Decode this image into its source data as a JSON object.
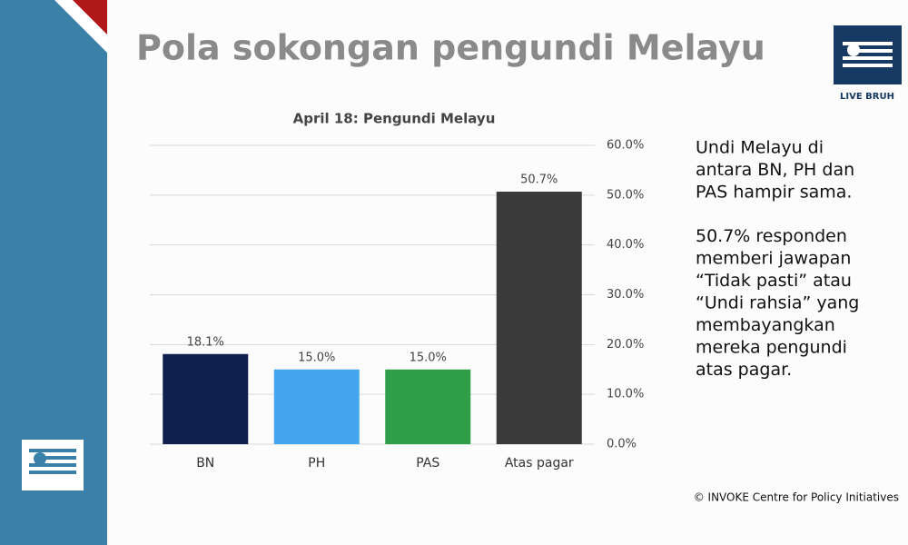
{
  "slide_title": "Pola sokongan pengundi Melayu",
  "logo_text": "LIVE BRUH",
  "notes": [
    [
      "Undi Melayu di",
      "antara BN, PH dan",
      "PAS hampir sama."
    ],
    [
      "50.7% responden",
      "memberi jawapan",
      "“Tidak pasti” atau",
      "“Undi rahsia” yang",
      "membayangkan",
      "mereka pengundi",
      "atas pagar."
    ]
  ],
  "credit": "© INVOKE Centre for Policy Initiatives",
  "chart_data": {
    "type": "bar",
    "title": "April 18: Pengundi Melayu",
    "categories": [
      "BN",
      "PH",
      "PAS",
      "Atas pagar"
    ],
    "values": [
      18.1,
      15.0,
      15.0,
      50.7
    ],
    "value_labels": [
      "18.1%",
      "15.0%",
      "15.0%",
      "50.7%"
    ],
    "colors": [
      "#0e1f50",
      "#43a6ef",
      "#2f9e48",
      "#3a3a3a"
    ],
    "ylim": [
      0,
      60
    ],
    "yticks": [
      {
        "value": 0,
        "label": "0.0%"
      },
      {
        "value": 10,
        "label": "10.0%"
      },
      {
        "value": 20,
        "label": "20.0%"
      },
      {
        "value": 30,
        "label": "30.0%"
      },
      {
        "value": 40,
        "label": "40.0%"
      },
      {
        "value": 50,
        "label": "50.0%"
      },
      {
        "value": 60,
        "label": "60.0%"
      }
    ],
    "grid": true
  }
}
